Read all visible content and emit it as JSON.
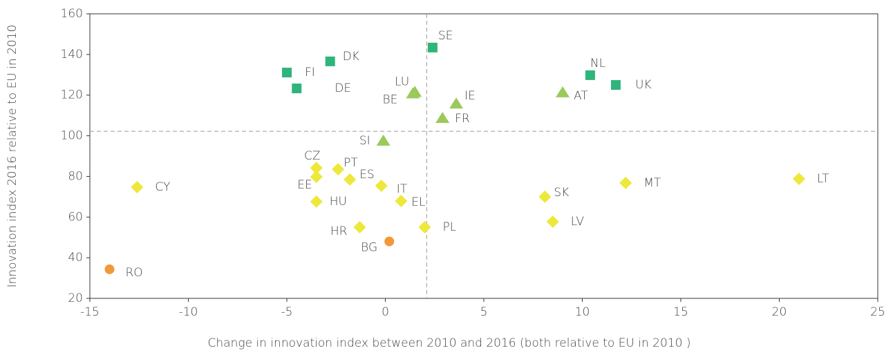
{
  "chart_data": {
    "type": "scatter",
    "xlabel": "Change in innovation index between 2010 and 2016  (both relative to EU in 2010 )",
    "ylabel": "Innovation index 2016 relative to EU in 2010",
    "xlim": [
      -15,
      25
    ],
    "xticks": [
      -15,
      -10,
      -5,
      0,
      5,
      10,
      15,
      20,
      25
    ],
    "ylim": [
      20,
      160
    ],
    "yticks": [
      20,
      40,
      60,
      80,
      100,
      120,
      140,
      160
    ],
    "vline": 2.1,
    "hline": 102.2,
    "series": [
      {
        "color": "#2fb47c",
        "marker": "square",
        "labels": [
          "SE",
          "DK",
          "FI",
          "DE",
          "NL",
          "UK"
        ],
        "x": [
          2.4,
          -2.8,
          -5.0,
          -4.5,
          10.4,
          11.7
        ],
        "values": [
          143.4,
          136.6,
          131.1,
          123.3,
          129.8,
          125.0
        ]
      },
      {
        "color": "#9bc95b",
        "marker": "triangle",
        "labels": [
          "LU",
          "BE",
          "IE",
          "FR",
          "AT",
          "SI"
        ],
        "x": [
          1.5,
          1.4,
          3.6,
          2.9,
          9.0,
          -0.1
        ],
        "values": [
          121.5,
          120.8,
          115.8,
          108.7,
          121.3,
          97.5
        ]
      },
      {
        "color": "#ede83a",
        "marker": "diamond",
        "labels": [
          "CY",
          "CZ",
          "EE",
          "PT",
          "ES",
          "IT",
          "HU",
          "EL",
          "HR",
          "PL",
          "SK",
          "LV",
          "MT",
          "LT"
        ],
        "x": [
          -12.6,
          -3.5,
          -3.5,
          -2.4,
          -1.8,
          -0.2,
          -3.5,
          0.8,
          -1.3,
          2.0,
          8.1,
          8.5,
          12.2,
          21.0
        ],
        "values": [
          74.7,
          84.2,
          79.8,
          83.5,
          78.5,
          75.4,
          67.6,
          67.9,
          55.0,
          55.0,
          70.0,
          57.7,
          76.8,
          78.8
        ]
      },
      {
        "color": "#f39839",
        "marker": "circle",
        "labels": [
          "BG",
          "RO"
        ],
        "x": [
          0.2,
          -14.0
        ],
        "values": [
          48.0,
          34.3
        ]
      }
    ]
  }
}
